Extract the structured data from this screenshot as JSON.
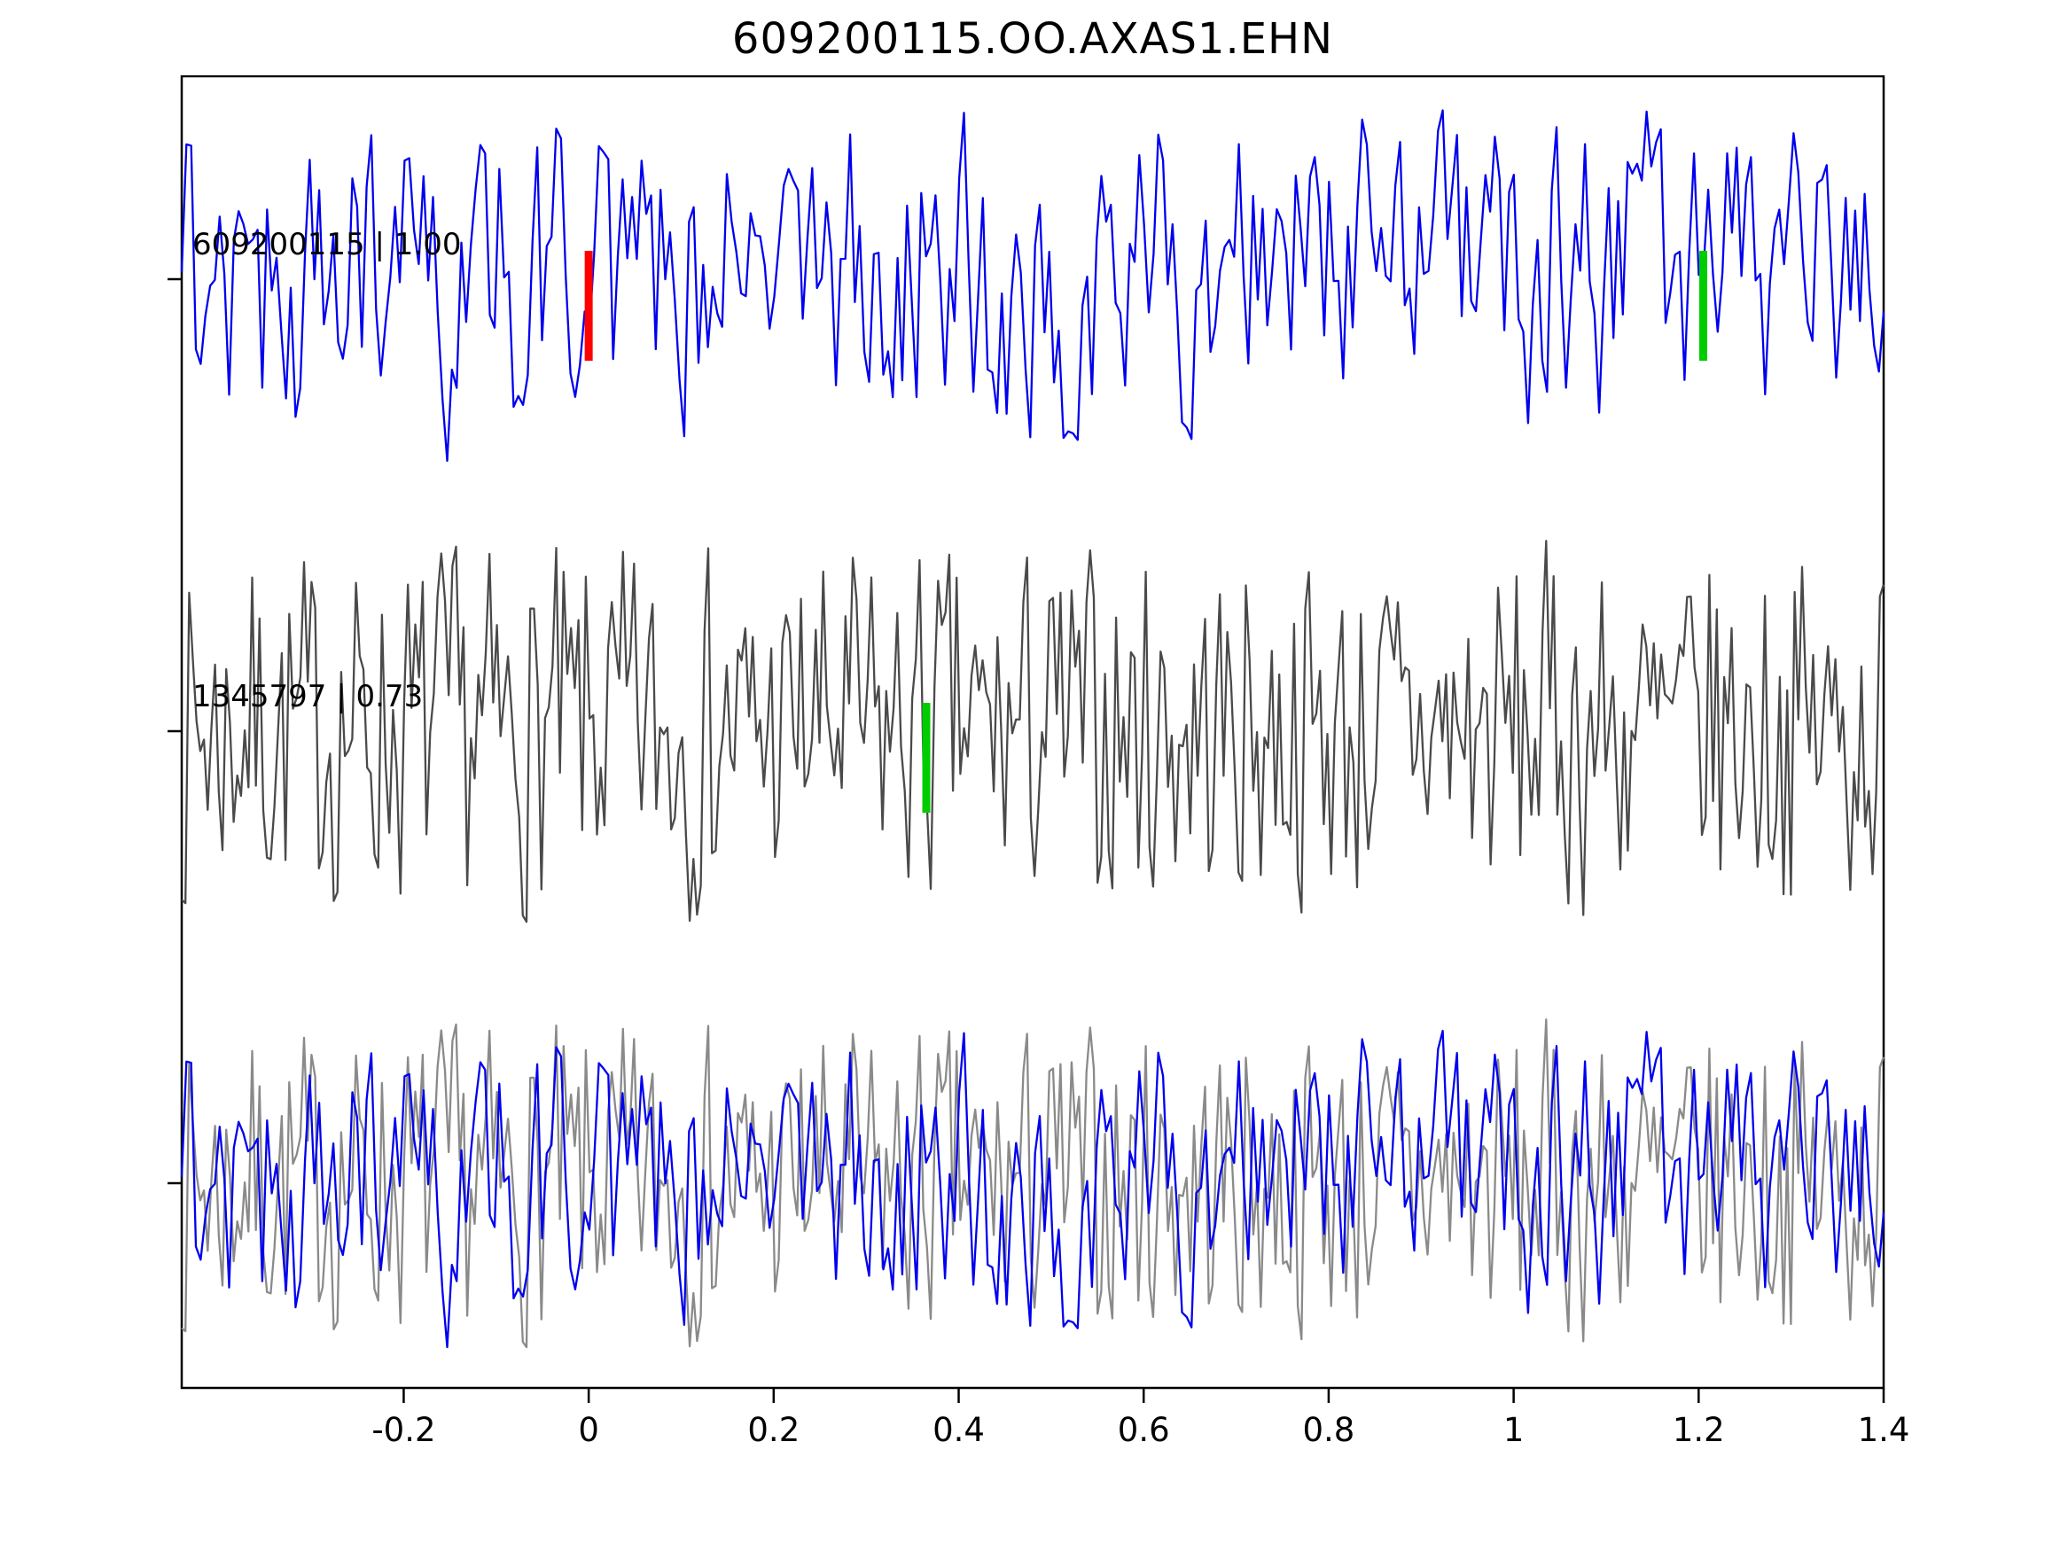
{
  "title": "609200115.OO.AXAS1.EHN",
  "colors": {
    "detection_blue": "#0000ee",
    "template_dark": "#4a4a4a",
    "template_light": "#8a8a8a",
    "pick_red": "#ff0000",
    "pick_green": "#00cc00",
    "axis": "#000000",
    "background": "#ffffff"
  },
  "chart_data": {
    "type": "line",
    "title": "609200115.OO.AXAS1.EHN",
    "xlabel": "",
    "ylabel": "",
    "xlim": [
      -0.44,
      1.4
    ],
    "grid": false,
    "legend": "none",
    "xticks": [
      -0.2,
      0,
      0.2,
      0.4,
      0.6,
      0.8,
      1,
      1.2,
      1.4
    ],
    "xtick_labels": [
      "-0.2",
      "0",
      "0.2",
      "0.4",
      "0.6",
      "0.8",
      "1",
      "1.2",
      "1.4"
    ],
    "note": "Three stacked seismic waveform traces: detection trace (blue) with red pick at t=0.0 and green pick at t=1.205; template trace (dark gray) with green pick at t=0.365; bottom row overlays detection (blue) on template (light gray). Waveforms are band-limited noise; exact sample values are not recoverable from the screenshot, so they are synthesized deterministically from the seeds below.",
    "traces": [
      {
        "id": "detection",
        "label": "609200115 | 1.00",
        "color": "#0000ee",
        "row": 0,
        "z": 1,
        "markers": [
          {
            "x": 0.0,
            "color": "#ff0000",
            "kind": "pick-red"
          },
          {
            "x": 1.205,
            "color": "#00cc00",
            "kind": "pick-green"
          }
        ],
        "synthetic": {
          "seed": 20240915,
          "n": 360,
          "ar": 0.32,
          "amp": 205
        }
      },
      {
        "id": "template",
        "label": "1345797 | 0.73",
        "color": "#4a4a4a",
        "row": 1,
        "z": 1,
        "markers": [
          {
            "x": 0.365,
            "color": "#00cc00",
            "kind": "pick-green"
          }
        ],
        "synthetic": {
          "seed": 7,
          "n": 460,
          "ar": 0.12,
          "amp": 215
        }
      },
      {
        "id": "overlay-template",
        "label": null,
        "color": "#8a8a8a",
        "row": 2,
        "z": 0,
        "markers": [],
        "synthetic": {
          "seed": 7,
          "n": 460,
          "ar": 0.12,
          "amp": 185
        }
      },
      {
        "id": "overlay-detection",
        "label": null,
        "color": "#0000ee",
        "row": 2,
        "z": 1,
        "markers": [],
        "synthetic": {
          "seed": 20240915,
          "n": 360,
          "ar": 0.32,
          "amp": 185
        }
      }
    ]
  }
}
